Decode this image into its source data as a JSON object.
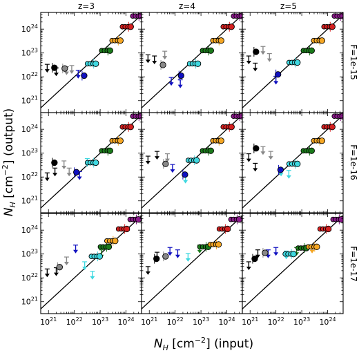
{
  "figure": {
    "columns": [
      "z=3",
      "z=4",
      "z=5"
    ],
    "rows": [
      "F=1e-15",
      "F=1e-16",
      "F=1e-17"
    ],
    "xlabel_main": "N",
    "xlabel_sub": "H",
    "xlabel_unit": " [cm",
    "xlabel_exp": "−2",
    "xlabel_tail": "] (input)",
    "ylabel_main": "N",
    "ylabel_sub": "H",
    "ylabel_unit": " [cm",
    "ylabel_exp": "−2",
    "ylabel_tail": "] (output)",
    "x_tick_exponents": [
      "21",
      "22",
      "23",
      "24"
    ],
    "y_tick_exponents": [
      "21",
      "22",
      "23",
      "24"
    ],
    "tick_base": "10"
  },
  "colors": {
    "bin_colors": [
      "#000000",
      "#888888",
      "#1010c0",
      "#3fd8e0",
      "#1a7a1a",
      "#f5a623",
      "#d42020",
      "#8a1a8a"
    ],
    "marker_edge": "#000000"
  },
  "chart_data": {
    "type": "scatter",
    "x_scale": "log",
    "y_scale": "log",
    "xlim_log10": [
      20.7,
      24.6
    ],
    "ylim_log10": [
      20.5,
      24.7
    ],
    "reference_line": "y = x",
    "grid": false,
    "panels": [
      {
        "column": "z=3",
        "row": "F=1e-15",
        "detections": [
          [
            21.15,
            22.38,
            0
          ],
          [
            21.55,
            22.35,
            1
          ],
          [
            22.3,
            22.05,
            2
          ],
          [
            22.75,
            22.55,
            3
          ],
          [
            23.3,
            23.1,
            4
          ],
          [
            23.7,
            23.52,
            5
          ],
          [
            24.1,
            24.1,
            6
          ],
          [
            24.5,
            24.55,
            7
          ]
        ],
        "upper_limits": [
          [
            20.95,
            22.35,
            0
          ],
          [
            21.3,
            22.2,
            0
          ],
          [
            21.7,
            22.25,
            1
          ],
          [
            21.9,
            22.3,
            1
          ],
          [
            22.15,
            22.1,
            2
          ]
        ]
      },
      {
        "column": "z=4",
        "row": "F=1e-15",
        "detections": [
          [
            21.45,
            22.5,
            1
          ],
          [
            22.15,
            22.05,
            2
          ],
          [
            22.8,
            22.55,
            3
          ],
          [
            23.3,
            23.1,
            4
          ],
          [
            23.7,
            23.52,
            5
          ],
          [
            24.1,
            24.1,
            6
          ],
          [
            24.5,
            24.55,
            7
          ]
        ],
        "upper_limits": [
          [
            20.95,
            22.75,
            0
          ],
          [
            21.2,
            22.7,
            0
          ],
          [
            21.6,
            22.9,
            1
          ],
          [
            21.85,
            21.8,
            2
          ],
          [
            22.2,
            21.7,
            2
          ]
        ]
      },
      {
        "column": "z=5",
        "row": "F=1e-15",
        "detections": [
          [
            21.15,
            23.05,
            0
          ],
          [
            22.0,
            22.1,
            2
          ],
          [
            22.75,
            22.6,
            3
          ],
          [
            23.3,
            23.1,
            4
          ],
          [
            23.7,
            23.52,
            5
          ],
          [
            24.1,
            24.1,
            6
          ],
          [
            24.5,
            24.55,
            7
          ]
        ],
        "upper_limits": [
          [
            20.95,
            22.7,
            0
          ],
          [
            21.2,
            22.4,
            0
          ],
          [
            21.5,
            23.1,
            1
          ],
          [
            21.75,
            22.8,
            1
          ],
          [
            22.0,
            21.85,
            2
          ]
        ]
      },
      {
        "column": "z=3",
        "row": "F=1e-16",
        "detections": [
          [
            21.15,
            22.6,
            0
          ],
          [
            22.0,
            22.2,
            2
          ],
          [
            22.75,
            22.6,
            3
          ],
          [
            23.3,
            23.1,
            4
          ],
          [
            23.7,
            23.52,
            5
          ],
          [
            24.1,
            24.1,
            6
          ],
          [
            24.5,
            24.55,
            7
          ]
        ],
        "upper_limits": [
          [
            20.95,
            22.0,
            0
          ],
          [
            21.25,
            22.2,
            0
          ],
          [
            21.6,
            22.5,
            1
          ],
          [
            21.8,
            22.2,
            1
          ],
          [
            22.2,
            22.05,
            2
          ],
          [
            22.5,
            22.6,
            3
          ]
        ]
      },
      {
        "column": "z=4",
        "row": "F=1e-16",
        "detections": [
          [
            21.55,
            22.55,
            1
          ],
          [
            22.3,
            22.1,
            2
          ],
          [
            22.75,
            22.7,
            3
          ],
          [
            23.3,
            23.1,
            4
          ],
          [
            23.7,
            23.52,
            5
          ],
          [
            24.1,
            24.1,
            6
          ],
          [
            24.5,
            24.55,
            7
          ]
        ],
        "upper_limits": [
          [
            20.95,
            22.7,
            0
          ],
          [
            21.3,
            22.9,
            0
          ],
          [
            21.7,
            22.8,
            1
          ],
          [
            21.9,
            22.35,
            2
          ],
          [
            22.4,
            21.9,
            3
          ]
        ]
      },
      {
        "column": "z=5",
        "row": "F=1e-16",
        "detections": [
          [
            21.15,
            23.2,
            0
          ],
          [
            22.1,
            22.3,
            2
          ],
          [
            22.75,
            22.55,
            3
          ],
          [
            23.3,
            23.1,
            4
          ],
          [
            23.7,
            23.52,
            5
          ],
          [
            24.1,
            24.1,
            6
          ],
          [
            24.5,
            24.55,
            7
          ]
        ],
        "upper_limits": [
          [
            20.95,
            22.8,
            0
          ],
          [
            21.2,
            22.4,
            0
          ],
          [
            21.5,
            23.1,
            1
          ],
          [
            21.8,
            22.9,
            1
          ],
          [
            22.2,
            22.2,
            3
          ],
          [
            22.5,
            22.1,
            3
          ]
        ]
      },
      {
        "column": "z=3",
        "row": "F=1e-17",
        "detections": [
          [
            21.35,
            22.45,
            1
          ],
          [
            22.9,
            22.9,
            3
          ],
          [
            23.25,
            23.3,
            4
          ],
          [
            23.5,
            23.55,
            5
          ],
          [
            23.95,
            24.05,
            6
          ],
          [
            24.4,
            24.45,
            7
          ]
        ],
        "upper_limits": [
          [
            20.95,
            22.2,
            0
          ],
          [
            21.3,
            22.25,
            0
          ],
          [
            21.7,
            22.7,
            1
          ],
          [
            22.05,
            23.2,
            2
          ],
          [
            22.4,
            22.5,
            3
          ],
          [
            22.7,
            22.1,
            3
          ],
          [
            23.05,
            23.0,
            4
          ]
        ]
      },
      {
        "column": "z=4",
        "row": "F=1e-17",
        "detections": [
          [
            21.2,
            22.8,
            0
          ],
          [
            21.55,
            22.9,
            1
          ],
          [
            23.2,
            23.3,
            4
          ],
          [
            23.6,
            23.4,
            5
          ],
          [
            23.95,
            24.05,
            6
          ],
          [
            24.4,
            24.45,
            7
          ]
        ],
        "upper_limits": [
          [
            20.95,
            22.3,
            0
          ],
          [
            21.3,
            22.9,
            0
          ],
          [
            21.8,
            23.1,
            2
          ],
          [
            22.1,
            23.0,
            2
          ],
          [
            22.5,
            22.85,
            3
          ],
          [
            22.95,
            23.2,
            4
          ]
        ]
      },
      {
        "column": "z=5",
        "row": "F=1e-17",
        "detections": [
          [
            21.1,
            22.8,
            0
          ],
          [
            21.5,
            23.05,
            1
          ],
          [
            22.6,
            23.0,
            3
          ],
          [
            23.1,
            23.25,
            4
          ],
          [
            23.5,
            23.3,
            5
          ],
          [
            23.95,
            24.05,
            6
          ],
          [
            24.45,
            24.45,
            7
          ]
        ],
        "upper_limits": [
          [
            20.95,
            22.5,
            0
          ],
          [
            21.3,
            23.0,
            0
          ],
          [
            21.7,
            23.0,
            2
          ],
          [
            22.0,
            23.1,
            2
          ],
          [
            22.4,
            22.95,
            3
          ],
          [
            22.8,
            23.1,
            4
          ],
          [
            23.4,
            23.2,
            5
          ]
        ]
      }
    ]
  }
}
